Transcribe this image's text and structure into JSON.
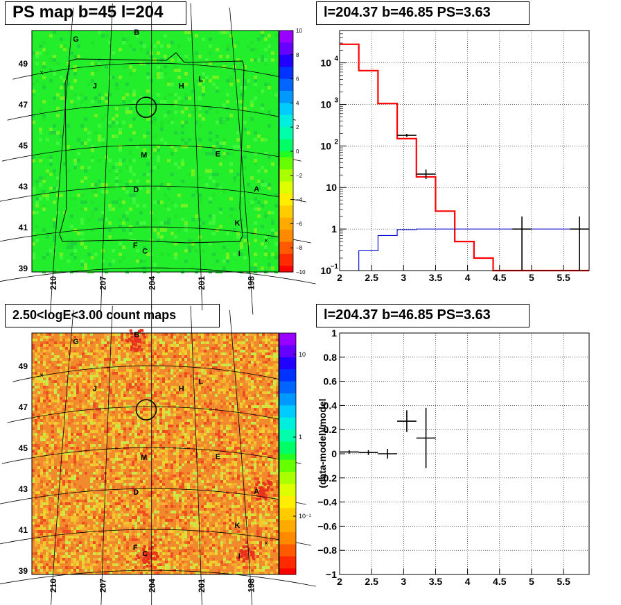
{
  "colors": {
    "ps_background": "#22ee2c",
    "ps_noise": [
      "#22e52a",
      "#3ef73a",
      "#6ff21f",
      "#1dd43b"
    ],
    "count_background": "#f08a2c",
    "count_noise": [
      "#f5b02c",
      "#ee6a25",
      "#f4c62d",
      "#e9d631",
      "#ef4a22",
      "#c9e84a",
      "#f7a734"
    ],
    "red_line": "#ff0000",
    "blue_line": "#0000cc"
  },
  "panels": {
    "ps_map": {
      "title": "PS map b=45 l=204",
      "y_ticks": [
        "39",
        "41",
        "43",
        "45",
        "47",
        "49"
      ],
      "x_ticks": [
        "210",
        "207",
        "204",
        "201",
        "198"
      ],
      "colorbar_ticks": [
        "10",
        "8",
        "6",
        "4",
        "2",
        "0",
        "−2",
        "−4",
        "−6",
        "−8",
        "−10"
      ],
      "labels": [
        "G",
        "B",
        "J",
        "H",
        "L",
        "M",
        "E",
        "D",
        "A",
        "K",
        "F",
        "C",
        "I"
      ]
    },
    "count_map": {
      "title": "2.50<logE<3.00 count maps",
      "y_ticks": [
        "39",
        "41",
        "43",
        "45",
        "47",
        "49"
      ],
      "x_ticks": [
        "210",
        "207",
        "204",
        "201",
        "198"
      ],
      "colorbar_ticks": [
        "10",
        "1",
        "10⁻¹"
      ],
      "labels": [
        "G",
        "B",
        "J",
        "H",
        "L",
        "M",
        "E",
        "D",
        "A",
        "K",
        "F",
        "C",
        "I"
      ]
    },
    "spectrum": {
      "title": "l=204.37 b=46.85 PS=3.63"
    },
    "residual": {
      "title": "l=204.37 b=46.85 PS=3.63"
    }
  },
  "chart_data": [
    {
      "type": "heatmap",
      "title": "PS map b=45 l=204",
      "xlim": [
        212,
        196
      ],
      "ylim": [
        38.8,
        50.6
      ],
      "x_ticks": [
        210,
        207,
        204,
        201,
        198
      ],
      "y_ticks": [
        39,
        41,
        43,
        45,
        47,
        49
      ],
      "colorbar": {
        "min": -10,
        "max": 10
      },
      "source_labels": [
        {
          "name": "G",
          "l": 209.6,
          "b": 50.3
        },
        {
          "name": "B",
          "l": 205.1,
          "b": 50.4
        },
        {
          "name": "J",
          "l": 208.0,
          "b": 47.9
        },
        {
          "name": "H",
          "l": 201.9,
          "b": 47.8
        },
        {
          "name": "L",
          "l": 200.5,
          "b": 48.2
        },
        {
          "name": "M",
          "l": 204.5,
          "b": 44.4
        },
        {
          "name": "E",
          "l": 199.6,
          "b": 44.6
        },
        {
          "name": "D",
          "l": 205.0,
          "b": 42.7
        },
        {
          "name": "A",
          "l": 197.2,
          "b": 43.1
        },
        {
          "name": "K",
          "l": 198.6,
          "b": 41.3
        },
        {
          "name": "F",
          "l": 205.0,
          "b": 40.0
        },
        {
          "name": "C",
          "l": 204.4,
          "b": 39.7
        },
        {
          "name": "I",
          "l": 198.6,
          "b": 39.8
        }
      ],
      "marker_circle": {
        "l": 204.37,
        "b": 46.85
      }
    },
    {
      "type": "line",
      "title": "l=204.37 b=46.85 PS=3.63",
      "xlim": [
        2,
        5.9
      ],
      "ylim": [
        0.1,
        60000
      ],
      "y_scale": "log",
      "x_ticks": [
        2,
        2.5,
        3,
        3.5,
        4,
        4.5,
        5,
        5.5
      ],
      "y_ticks": [
        "10^-1",
        "1",
        "10",
        "10^2",
        "10^3",
        "10^4"
      ],
      "grid": true,
      "series": [
        {
          "color": "#ff0000",
          "style": "step",
          "bin_edges": [
            2.0,
            2.3,
            2.6,
            2.9,
            3.2,
            3.5,
            3.8,
            4.1,
            4.4,
            4.7,
            5.0,
            5.3,
            5.6,
            5.9
          ],
          "values": [
            28000,
            6500,
            1050,
            150,
            18,
            2.7,
            0.5,
            0.2,
            0.1,
            0.1,
            0.1,
            0.1,
            0.1
          ]
        },
        {
          "color": "#0000cc",
          "style": "step",
          "bin_edges": [
            2.0,
            2.3,
            2.6,
            2.9,
            3.2,
            3.5,
            3.8,
            4.1,
            4.4,
            4.7,
            5.0,
            5.3,
            5.6,
            5.9
          ],
          "values": [
            0.1,
            0.3,
            0.7,
            0.97,
            1.0,
            1.0,
            1.0,
            1.0,
            1.0,
            1.0,
            1.0,
            1.0,
            1.0
          ]
        },
        {
          "color": "#000000",
          "style": "errorbar",
          "points": [
            {
              "x": 3.05,
              "xerr": 0.15,
              "y": 180,
              "ylo": 165,
              "yhi": 195
            },
            {
              "x": 3.35,
              "xerr": 0.15,
              "y": 21,
              "ylo": 16,
              "yhi": 27
            },
            {
              "x": 4.85,
              "xerr": 0.15,
              "y": 1,
              "ylo": 0.1,
              "yhi": 2.0
            },
            {
              "x": 5.75,
              "xerr": 0.15,
              "y": 1,
              "ylo": 0.1,
              "yhi": 2.0
            }
          ]
        }
      ]
    },
    {
      "type": "heatmap",
      "title": "2.50<logE<3.00 count maps",
      "xlim": [
        212,
        196
      ],
      "ylim": [
        38.8,
        50.6
      ],
      "x_ticks": [
        210,
        207,
        204,
        201,
        198
      ],
      "y_ticks": [
        39,
        41,
        43,
        45,
        47,
        49
      ],
      "colorbar": {
        "scale": "log",
        "ticks": [
          "10",
          "1",
          "10^-1"
        ]
      }
    },
    {
      "type": "scatter",
      "title": "l=204.37 b=46.85 PS=3.63",
      "ylabel": "(data-model)/model",
      "xlim": [
        2,
        5.9
      ],
      "ylim": [
        -1,
        1
      ],
      "x_ticks": [
        2,
        2.5,
        3,
        3.5,
        4,
        4.5,
        5,
        5.5
      ],
      "y_ticks": [
        -1,
        -0.8,
        -0.6,
        -0.4,
        -0.2,
        0,
        0.2,
        0.4,
        0.6,
        0.8,
        1
      ],
      "grid": true,
      "points": [
        {
          "x": 2.15,
          "xerr": 0.15,
          "y": 0.015,
          "ylo": 0.0,
          "yhi": 0.03
        },
        {
          "x": 2.45,
          "xerr": 0.15,
          "y": 0.01,
          "ylo": -0.01,
          "yhi": 0.03
        },
        {
          "x": 2.75,
          "xerr": 0.15,
          "y": 0.0,
          "ylo": -0.04,
          "yhi": 0.04
        },
        {
          "x": 3.05,
          "xerr": 0.15,
          "y": 0.27,
          "ylo": 0.18,
          "yhi": 0.36
        },
        {
          "x": 3.35,
          "xerr": 0.15,
          "y": 0.13,
          "ylo": -0.12,
          "yhi": 0.38
        }
      ]
    }
  ]
}
